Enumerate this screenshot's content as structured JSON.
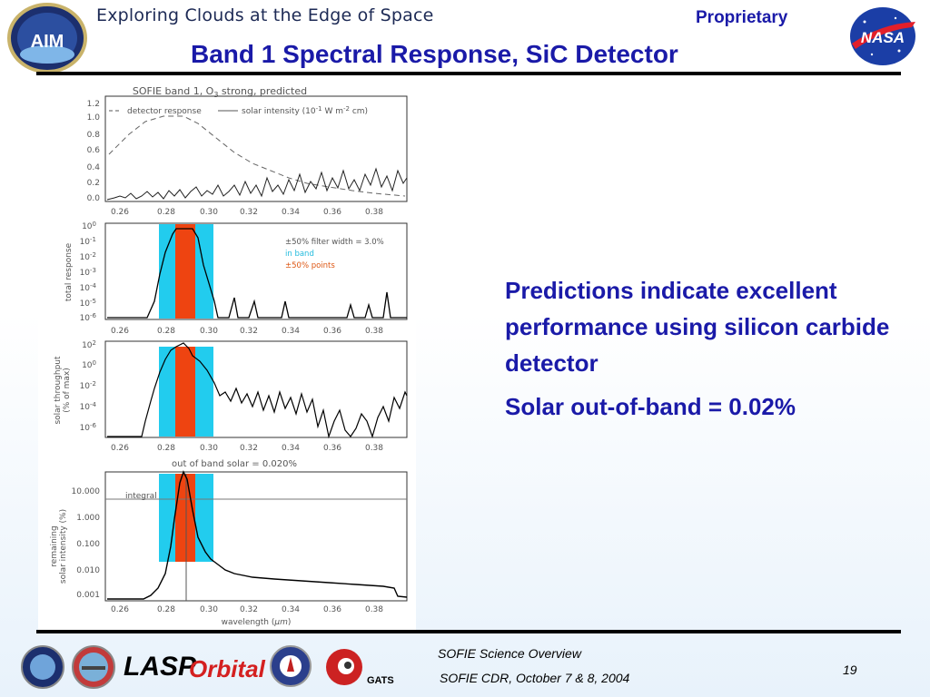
{
  "header": {
    "tagline": "Exploring Clouds at the Edge of Space",
    "proprietary": "Proprietary",
    "title": "Band 1 Spectral Response, SiC Detector",
    "aim_logo_text": "AIM",
    "nasa_logo_text": "NASA"
  },
  "figure": {
    "top_title": "SOFIE band   1, O",
    "top_title_sub": "3",
    "top_title_rest": " strong, predicted",
    "legend_detector": "detector response",
    "legend_solar": "solar intensity (10",
    "legend_solar_sup": "-1",
    "legend_solar_mid": " W m",
    "legend_solar_sup2": "-2",
    "legend_solar_end": " cm)",
    "x_ticks": [
      "0.26",
      "0.28",
      "0.30",
      "0.32",
      "0.34",
      "0.36",
      "0.38"
    ],
    "panel1_yticks": [
      "1.2",
      "1.0",
      "0.8",
      "0.6",
      "0.4",
      "0.2",
      "0.0"
    ],
    "panel2_ylabel": "total response",
    "panel2_yticks_mantissa": [
      "10",
      "10",
      "10",
      "10",
      "10",
      "10",
      "10"
    ],
    "panel2_yticks_exp": [
      "0",
      "-1",
      "-2",
      "-3",
      "-4",
      "-5",
      "-6"
    ],
    "panel2_legend": [
      "±50% filter width = 3.0%",
      "in band",
      "±50% points"
    ],
    "panel3_ylabel_1": "solar throughput",
    "panel3_ylabel_2": "(% of max)",
    "panel3_yticks_exp": [
      "2",
      "0",
      "-2",
      "-4",
      "-6"
    ],
    "panel4_title": "out of band solar = 0.020%",
    "panel4_ylabel_1": "remaining",
    "panel4_ylabel_2": "solar intensity (%)",
    "panel4_yticks": [
      "10.000",
      "1.000",
      "0.100",
      "0.010",
      "0.001"
    ],
    "panel4_integral": "integral",
    "xlabel": "wavelength (",
    "xlabel_mu": "μm",
    "xlabel_end": ")",
    "colors": {
      "in_band": "#22ccee",
      "points_50": "#ee4411",
      "text_in_band": "#22bbdd",
      "text_points": "#dd5511"
    }
  },
  "bullets": [
    "Predictions indicate excellent performance using silicon carbide detector",
    "Solar out-of-band = 0.02%"
  ],
  "footer": {
    "line1": "SOFIE Science Overview",
    "line2": "SOFIE CDR, October 7 & 8, 2004",
    "page": "19",
    "logo_lasp": "LASP",
    "logo_orbital": "Orbital",
    "logo_gats": "GATS"
  }
}
